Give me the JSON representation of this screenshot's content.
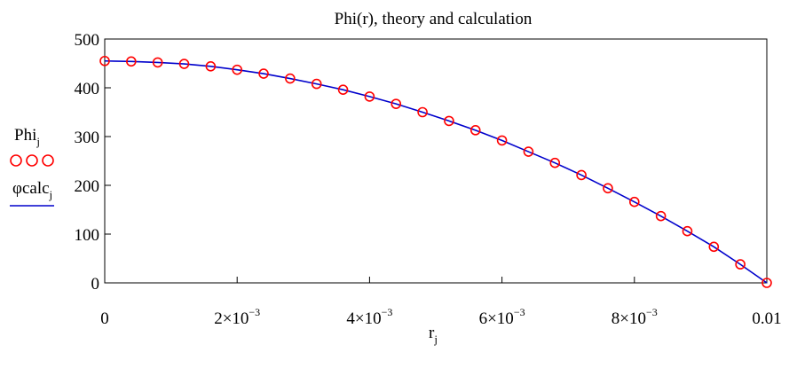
{
  "chart_data": {
    "type": "line",
    "title": "Phi(r), theory and calculation",
    "xlabel": "r",
    "xlabel_subscript": "j",
    "xlim": [
      0,
      0.01
    ],
    "ylim": [
      0,
      500
    ],
    "grid": false,
    "legend_placement": "left",
    "x_ticks": [
      {
        "value": 0,
        "base": "0",
        "exp": ""
      },
      {
        "value": 0.002,
        "base": "2×10",
        "exp": "−3"
      },
      {
        "value": 0.004,
        "base": "4×10",
        "exp": "−3"
      },
      {
        "value": 0.006,
        "base": "6×10",
        "exp": "−3"
      },
      {
        "value": 0.008,
        "base": "8×10",
        "exp": "−3"
      },
      {
        "value": 0.01,
        "base": "0.01",
        "exp": ""
      }
    ],
    "y_ticks": [
      {
        "value": 0,
        "label": "0"
      },
      {
        "value": 100,
        "label": "100"
      },
      {
        "value": 200,
        "label": "200"
      },
      {
        "value": 300,
        "label": "300"
      },
      {
        "value": 400,
        "label": "400"
      },
      {
        "value": 500,
        "label": "500"
      }
    ],
    "series": [
      {
        "name": "Phi",
        "name_subscript": "j",
        "style": "circles",
        "color": "#ff0000",
        "x": [
          0,
          0.0004,
          0.0008,
          0.0012,
          0.0016,
          0.002,
          0.0024,
          0.0028,
          0.0032,
          0.0036,
          0.004,
          0.0044,
          0.0048,
          0.0052,
          0.0056,
          0.006,
          0.0064,
          0.0068,
          0.0072,
          0.0076,
          0.008,
          0.0084,
          0.0088,
          0.0092,
          0.0096,
          0.01
        ],
        "values": [
          455,
          454,
          452,
          449,
          444,
          437,
          429,
          419,
          408,
          396,
          382,
          367,
          350,
          332,
          313,
          292,
          269,
          246,
          221,
          194,
          166,
          137,
          106,
          74,
          38,
          0
        ]
      },
      {
        "name": "φcalc",
        "name_subscript": "j",
        "style": "line",
        "color": "#0000cc",
        "x": [
          0,
          0.0004,
          0.0008,
          0.0012,
          0.0016,
          0.002,
          0.0024,
          0.0028,
          0.0032,
          0.0036,
          0.004,
          0.0044,
          0.0048,
          0.0052,
          0.0056,
          0.006,
          0.0064,
          0.0068,
          0.0072,
          0.0076,
          0.008,
          0.0084,
          0.0088,
          0.0092,
          0.0096,
          0.01
        ],
        "values": [
          455,
          454,
          452,
          449,
          444,
          437,
          429,
          419,
          408,
          396,
          382,
          367,
          350,
          332,
          313,
          292,
          269,
          246,
          221,
          194,
          166,
          137,
          106,
          74,
          38,
          0
        ]
      }
    ]
  }
}
